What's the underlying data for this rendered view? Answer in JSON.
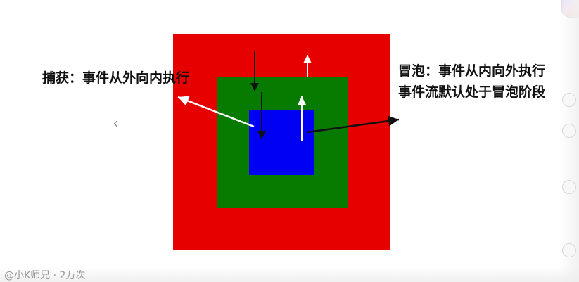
{
  "labels": {
    "capture": "捕获：事件从外向内执行",
    "bubble_line1": "冒泡：事件从内向外执行",
    "bubble_line2": "事件流默认处于冒泡阶段"
  },
  "footer": {
    "text": "@小K师兄 · 2万次"
  },
  "colors": {
    "outer": "#e60000",
    "middle": "#067b00",
    "inner": "#0000f2",
    "black_arrow": "#111111",
    "white_arrow": "#ffffff"
  },
  "icons": {
    "avatar": "avatar-icon",
    "rail_controls": [
      "like-icon",
      "comment-icon",
      "share-icon",
      "more-icon"
    ],
    "cursor": "cursor-icon"
  }
}
